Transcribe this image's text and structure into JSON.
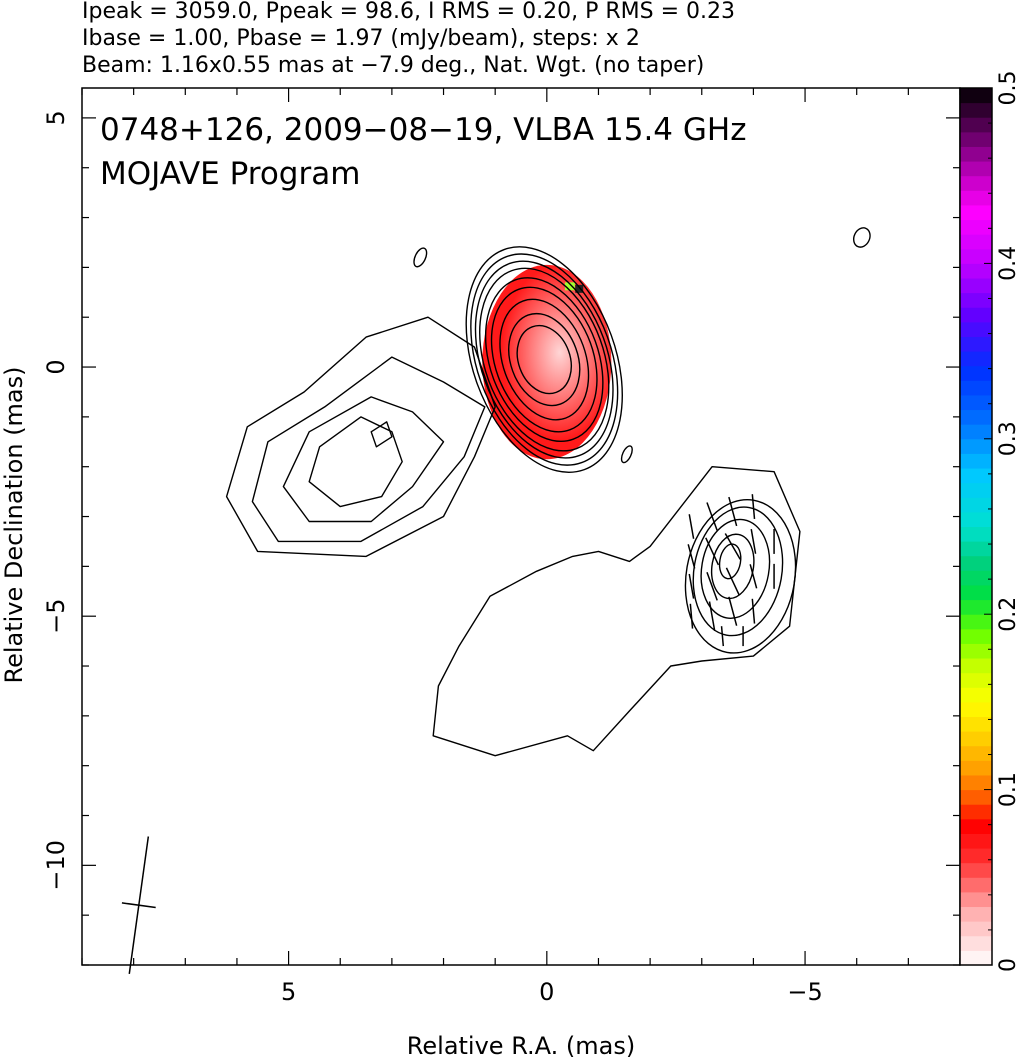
{
  "header": {
    "line1": "Ipeak = 3059.0, Ppeak = 98.6, I RMS = 0.20, P RMS = 0.23",
    "line2": "Ibase = 1.00, Pbase = 1.97 (mJy/beam), steps: x 2",
    "line3": "Beam: 1.16x0.55 mas at −7.9 deg., Nat. Wgt. (no taper)"
  },
  "chart_data": {
    "type": "heatmap",
    "title": "0748+126, 2009−08−19, VLBA 15.4 GHz",
    "subtitle": "MOJAVE Program",
    "xlabel": "Relative R.A. (mas)",
    "ylabel": "Relative Declination (mas)",
    "xlim": [
      9,
      -8
    ],
    "ylim": [
      -12,
      5.6
    ],
    "x_ticks": [
      {
        "value": 5,
        "label": "5"
      },
      {
        "value": 0,
        "label": "0"
      },
      {
        "value": -5,
        "label": "−5"
      }
    ],
    "y_ticks": [
      {
        "value": 5,
        "label": "5"
      },
      {
        "value": 0,
        "label": "0"
      },
      {
        "value": -5,
        "label": "−5"
      },
      {
        "value": -10,
        "label": "−10"
      }
    ],
    "colorbar": {
      "range": [
        0,
        0.5
      ],
      "ticks": [
        {
          "value": 0,
          "label": "0"
        },
        {
          "value": 0.1,
          "label": "0.1"
        },
        {
          "value": 0.2,
          "label": "0.2"
        },
        {
          "value": 0.3,
          "label": "0.3"
        },
        {
          "value": 0.4,
          "label": "0.4"
        },
        {
          "value": 0.5,
          "label": "0.5"
        }
      ]
    },
    "beam": {
      "major_mas": 1.16,
      "minor_mas": 0.55,
      "pa_deg": -7.9,
      "x": 7.9,
      "y": -10.8
    },
    "core_contours": {
      "x": 0.05,
      "y": 0.15,
      "a": [
        0.5,
        0.65,
        0.8,
        0.95,
        1.05,
        1.15,
        1.22,
        1.3,
        1.38
      ],
      "b": [
        0.7,
        0.95,
        1.25,
        1.5,
        1.7,
        1.9,
        2.05,
        2.2,
        2.35
      ]
    },
    "jet_contours": [
      [
        [
          2.3,
          1.0
        ],
        [
          3.5,
          0.6
        ],
        [
          4.7,
          -0.5
        ],
        [
          5.8,
          -1.2
        ],
        [
          6.2,
          -2.6
        ],
        [
          5.6,
          -3.7
        ],
        [
          3.5,
          -3.8
        ],
        [
          2.0,
          -3.0
        ],
        [
          1.4,
          -1.8
        ],
        [
          1.0,
          -0.8
        ],
        [
          1.4,
          0.4
        ],
        [
          2.3,
          1.0
        ]
      ],
      [
        [
          3.0,
          0.2
        ],
        [
          4.3,
          -0.8
        ],
        [
          5.4,
          -1.5
        ],
        [
          5.7,
          -2.7
        ],
        [
          5.2,
          -3.5
        ],
        [
          3.6,
          -3.5
        ],
        [
          2.4,
          -2.8
        ],
        [
          1.6,
          -1.8
        ],
        [
          1.2,
          -0.8
        ],
        [
          2.0,
          -0.3
        ],
        [
          3.0,
          0.2
        ]
      ],
      [
        [
          3.4,
          -0.6
        ],
        [
          4.6,
          -1.3
        ],
        [
          5.1,
          -2.4
        ],
        [
          4.6,
          -3.1
        ],
        [
          3.4,
          -3.1
        ],
        [
          2.6,
          -2.4
        ],
        [
          2.0,
          -1.5
        ],
        [
          2.6,
          -0.9
        ],
        [
          3.4,
          -0.6
        ]
      ],
      [
        [
          3.6,
          -1.0
        ],
        [
          4.4,
          -1.6
        ],
        [
          4.6,
          -2.3
        ],
        [
          4.0,
          -2.8
        ],
        [
          3.2,
          -2.6
        ],
        [
          2.8,
          -1.9
        ],
        [
          3.0,
          -1.3
        ],
        [
          3.6,
          -1.0
        ]
      ],
      [
        [
          3.1,
          -1.1
        ],
        [
          3.4,
          -1.3
        ],
        [
          3.3,
          -1.6
        ],
        [
          3.0,
          -1.4
        ],
        [
          3.1,
          -1.1
        ]
      ]
    ],
    "south_contour": [
      [
        -2.0,
        -3.6
      ],
      [
        -3.2,
        -2.0
      ],
      [
        -4.4,
        -2.1
      ],
      [
        -4.9,
        -3.3
      ],
      [
        -4.7,
        -5.2
      ],
      [
        -4.0,
        -5.8
      ],
      [
        -3.0,
        -5.9
      ],
      [
        -2.4,
        -6.0
      ],
      [
        -1.6,
        -6.9
      ],
      [
        -0.9,
        -7.7
      ],
      [
        -0.4,
        -7.4
      ],
      [
        1.0,
        -7.8
      ],
      [
        2.2,
        -7.4
      ],
      [
        2.1,
        -6.4
      ],
      [
        1.7,
        -5.6
      ],
      [
        1.1,
        -4.6
      ],
      [
        0.2,
        -4.1
      ],
      [
        -0.5,
        -3.8
      ],
      [
        -1.0,
        -3.7
      ],
      [
        -1.6,
        -3.9
      ],
      [
        -2.0,
        -3.6
      ]
    ],
    "south_knot_contours": [
      {
        "x": -3.75,
        "y": -4.2,
        "rx": 1.05,
        "ry": 1.55
      },
      {
        "x": -3.7,
        "y": -4.1,
        "rx": 0.85,
        "ry": 1.3
      },
      {
        "x": -3.65,
        "y": -4.05,
        "rx": 0.65,
        "ry": 1.0
      },
      {
        "x": -3.6,
        "y": -4.0,
        "rx": 0.4,
        "ry": 0.65
      },
      {
        "x": -3.55,
        "y": -3.9,
        "rx": 0.2,
        "ry": 0.35
      }
    ],
    "isolated_contours": [
      {
        "x": 2.45,
        "y": 2.2,
        "rx": 0.1,
        "ry": 0.2
      },
      {
        "x": -1.55,
        "y": -1.75,
        "rx": 0.08,
        "ry": 0.18
      },
      {
        "x": -6.1,
        "y": 2.6,
        "rx": 0.15,
        "ry": 0.2
      }
    ],
    "pol_core_region": {
      "x": 0.0,
      "y": 0.1,
      "rx": 1.25,
      "ry": 1.95,
      "color": "#ff1a1a"
    },
    "evpa_ticks": [
      {
        "x": -2.8,
        "y": -3.2,
        "len": 0.5,
        "angle": 10
      },
      {
        "x": -3.2,
        "y": -3.0,
        "len": 0.6,
        "angle": 20
      },
      {
        "x": -3.6,
        "y": -2.9,
        "len": 0.6,
        "angle": 15
      },
      {
        "x": -4.0,
        "y": -2.8,
        "len": 0.5,
        "angle": 5
      },
      {
        "x": -2.8,
        "y": -3.8,
        "len": 0.5,
        "angle": 15
      },
      {
        "x": -3.2,
        "y": -3.7,
        "len": 0.6,
        "angle": 25
      },
      {
        "x": -3.6,
        "y": -3.6,
        "len": 0.6,
        "angle": 30
      },
      {
        "x": -4.0,
        "y": -3.5,
        "len": 0.5,
        "angle": 10
      },
      {
        "x": -4.4,
        "y": -3.5,
        "len": 0.5,
        "angle": 0
      },
      {
        "x": -2.8,
        "y": -4.4,
        "len": 0.5,
        "angle": 10
      },
      {
        "x": -3.2,
        "y": -4.4,
        "len": 0.6,
        "angle": 20
      },
      {
        "x": -3.6,
        "y": -4.3,
        "len": 0.6,
        "angle": 25
      },
      {
        "x": -4.0,
        "y": -4.2,
        "len": 0.5,
        "angle": 15
      },
      {
        "x": -4.4,
        "y": -4.2,
        "len": 0.5,
        "angle": 0
      },
      {
        "x": -2.8,
        "y": -5.0,
        "len": 0.5,
        "angle": 5
      },
      {
        "x": -3.2,
        "y": -5.0,
        "len": 0.6,
        "angle": 10
      },
      {
        "x": -3.6,
        "y": -4.9,
        "len": 0.6,
        "angle": 15
      },
      {
        "x": -4.0,
        "y": -4.9,
        "len": 0.5,
        "angle": 5
      },
      {
        "x": -3.4,
        "y": -5.4,
        "len": 0.4,
        "angle": 5
      },
      {
        "x": -3.8,
        "y": -5.4,
        "len": 0.4,
        "angle": 0
      }
    ],
    "colors": {
      "red": "#ff2020",
      "frame": "#000000"
    }
  }
}
